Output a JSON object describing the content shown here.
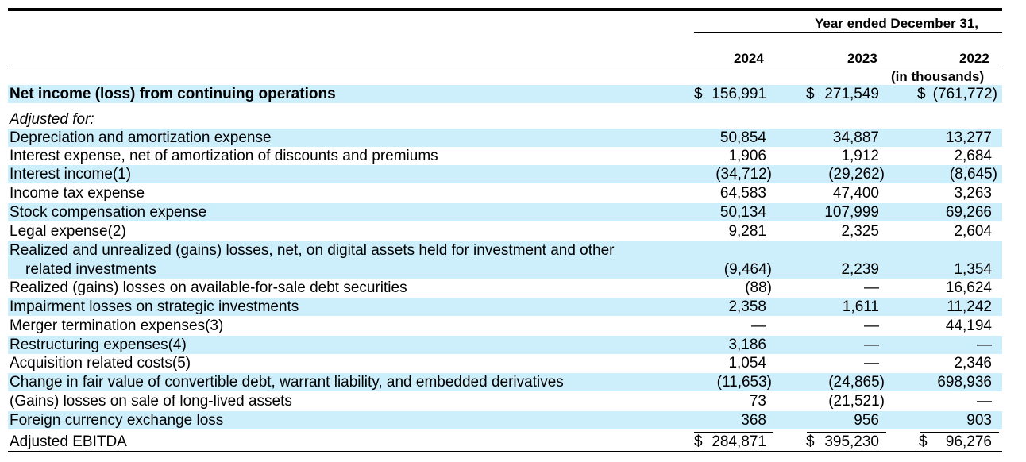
{
  "header": {
    "period_label": "Year ended December 31,",
    "years": [
      "2024",
      "2023",
      "2022"
    ],
    "unit_note": "(in thousands)"
  },
  "rows": [
    {
      "label": "Net income (loss) from continuing operations",
      "v2024": "156,991",
      "v2023": "271,549",
      "v2022": "(761,772)",
      "dollar": "$"
    },
    {
      "label": "Adjusted for:"
    },
    {
      "label": "Depreciation and amortization expense",
      "v2024": "50,854",
      "v2023": "34,887",
      "v2022": "13,277"
    },
    {
      "label": "Interest expense, net of amortization of discounts and premiums",
      "v2024": "1,906",
      "v2023": "1,912",
      "v2022": "2,684"
    },
    {
      "label": "Interest income(1)",
      "v2024": "(34,712)",
      "v2023": "(29,262)",
      "v2022": "(8,645)"
    },
    {
      "label": "Income tax expense",
      "v2024": "64,583",
      "v2023": "47,400",
      "v2022": "3,263"
    },
    {
      "label": "Stock compensation expense",
      "v2024": "50,134",
      "v2023": "107,999",
      "v2022": "69,266"
    },
    {
      "label": "Legal expense(2)",
      "v2024": "9,281",
      "v2023": "2,325",
      "v2022": "2,604"
    },
    {
      "label": "Realized and unrealized (gains) losses, net, on digital assets held for investment and other",
      "label2": "related investments",
      "v2024": "(9,464)",
      "v2023": "2,239",
      "v2022": "1,354"
    },
    {
      "label": "Realized (gains) losses on available-for-sale debt securities",
      "v2024": "(88)",
      "v2023": "—",
      "v2022": "16,624"
    },
    {
      "label": "Impairment losses on strategic investments",
      "v2024": "2,358",
      "v2023": "1,611",
      "v2022": "11,242"
    },
    {
      "label": "Merger termination expenses(3)",
      "v2024": "—",
      "v2023": "—",
      "v2022": "44,194"
    },
    {
      "label": "Restructuring expenses(4)",
      "v2024": "3,186",
      "v2023": "—",
      "v2022": "—"
    },
    {
      "label": "Acquisition related costs(5)",
      "v2024": "1,054",
      "v2023": "—",
      "v2022": "2,346"
    },
    {
      "label": "Change in fair value of convertible debt, warrant liability, and embedded derivatives",
      "v2024": "(11,653)",
      "v2023": "(24,865)",
      "v2022": "698,936"
    },
    {
      "label": "(Gains) losses on sale of long-lived assets",
      "v2024": "73",
      "v2023": "(21,521)",
      "v2022": "—"
    },
    {
      "label": "Foreign currency exchange loss",
      "v2024": "368",
      "v2023": "956",
      "v2022": "903"
    },
    {
      "label": "Adjusted EBITDA",
      "v2024": "284,871",
      "v2023": "395,230",
      "v2022": "96,276",
      "dollar": "$"
    }
  ]
}
